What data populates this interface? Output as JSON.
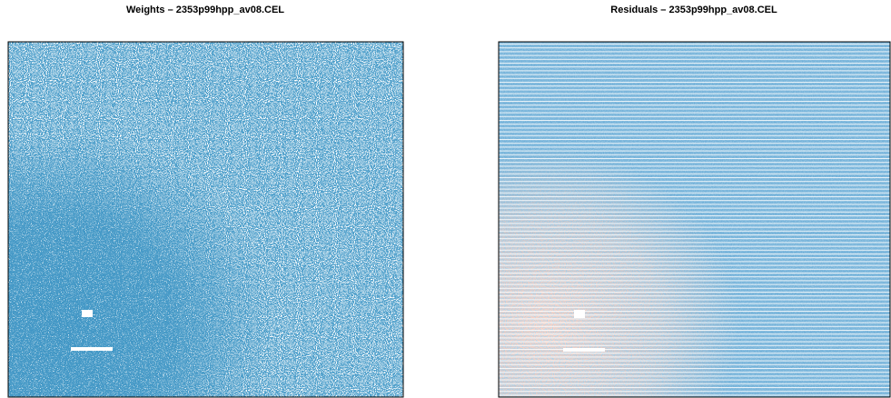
{
  "panels": [
    {
      "title": "Weights – 2353p99hpp_av08.CEL"
    },
    {
      "title": "Residuals – 2353p99hpp_av08.CEL"
    }
  ]
}
